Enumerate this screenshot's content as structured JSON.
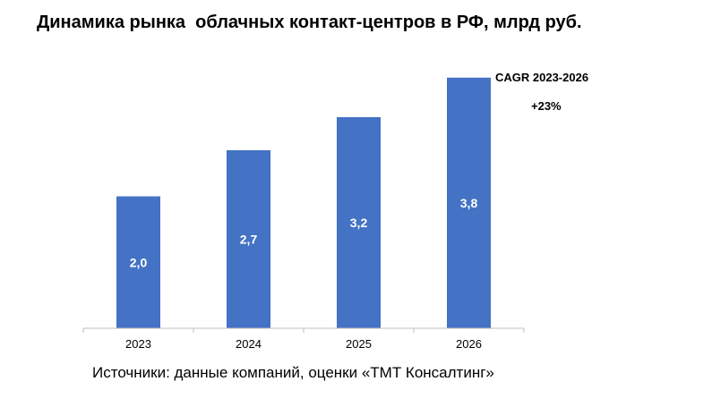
{
  "title": "Динамика рынка  облачных контакт-центров в РФ, млрд руб.",
  "cagr": {
    "label": "CAGR 2023-2026",
    "value": "+23%"
  },
  "source": "Источники: данные компаний, оценки «ТМТ Консалтинг»",
  "colors": {
    "bar": "#4472C4",
    "axis": "#BFBFBF",
    "bar_label": "#FFFFFF"
  },
  "chart_data": {
    "type": "bar",
    "categories": [
      "2023",
      "2024",
      "2025",
      "2026"
    ],
    "values": [
      2.0,
      2.7,
      3.2,
      3.8
    ],
    "data_labels": [
      "2,0",
      "2,7",
      "3,2",
      "3,8"
    ],
    "title": "Динамика рынка  облачных контакт-центров в РФ, млрд руб.",
    "xlabel": "",
    "ylabel": "",
    "ylim": [
      0,
      4.0
    ],
    "grid": false,
    "legend": "none"
  }
}
